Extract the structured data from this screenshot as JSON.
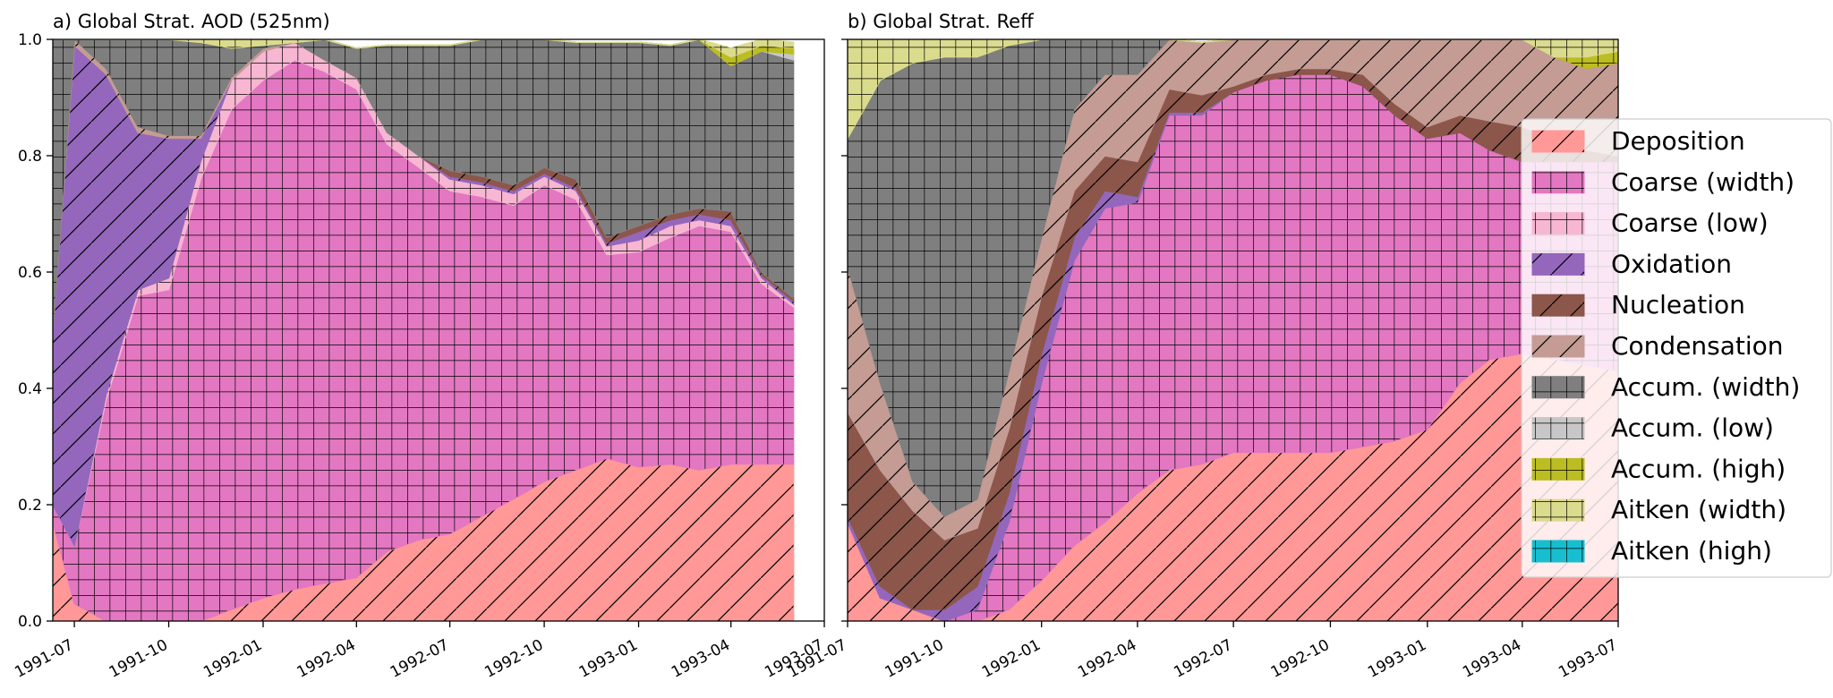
{
  "chart_data": [
    {
      "type": "area",
      "subtype": "stacked-fraction",
      "title": "a) Global Strat. AOD (525nm)",
      "x": [
        "1991-06",
        "1991-07",
        "1991-08",
        "1991-09",
        "1991-10",
        "1991-11",
        "1991-12",
        "1992-01",
        "1992-02",
        "1992-03",
        "1992-04",
        "1992-05",
        "1992-06",
        "1992-07",
        "1992-08",
        "1992-09",
        "1992-10",
        "1992-11",
        "1992-12",
        "1993-01",
        "1993-02",
        "1993-03",
        "1993-04",
        "1993-05",
        "1993-06"
      ],
      "xlim": [
        "1991-06-10",
        "1993-07-01"
      ],
      "ylim": [
        0,
        1
      ],
      "yticks": [
        "0.0",
        "0.2",
        "0.4",
        "0.6",
        "0.8",
        "1.0"
      ],
      "xticks": [
        "1991-07",
        "1991-10",
        "1992-01",
        "1992-04",
        "1992-07",
        "1992-10",
        "1993-01",
        "1993-04",
        "1993-07"
      ],
      "series": [
        {
          "name": "Deposition",
          "values": [
            0.23,
            0.03,
            0,
            0,
            0,
            0,
            0.02,
            0.04,
            0.055,
            0.065,
            0.075,
            0.12,
            0.14,
            0.15,
            0.18,
            0.21,
            0.24,
            0.26,
            0.28,
            0.265,
            0.27,
            0.26,
            0.27,
            0.27,
            0.27
          ]
        },
        {
          "name": "Coarse (width)",
          "values": [
            0,
            0.1,
            0.38,
            0.56,
            0.57,
            0.76,
            0.86,
            0.89,
            0.91,
            0.88,
            0.84,
            0.7,
            0.64,
            0.59,
            0.55,
            0.505,
            0.51,
            0.465,
            0.35,
            0.37,
            0.39,
            0.42,
            0.4,
            0.31,
            0.27
          ]
        },
        {
          "name": "Coarse (low)",
          "values": [
            0,
            0,
            0.01,
            0.01,
            0.02,
            0.03,
            0.05,
            0.05,
            0.03,
            0.02,
            0.02,
            0.02,
            0.02,
            0.02,
            0.02,
            0.02,
            0.015,
            0.015,
            0.015,
            0.02,
            0.02,
            0.01,
            0.01,
            0.01,
            0.005
          ]
        },
        {
          "name": "Oxidation",
          "values": [
            0.06,
            0.86,
            0.55,
            0.27,
            0.24,
            0.04,
            0,
            0,
            0,
            0,
            0,
            0,
            0,
            0.005,
            0.005,
            0.005,
            0.005,
            0.005,
            0.005,
            0.015,
            0.01,
            0.01,
            0.01,
            0.005,
            0.005
          ]
        },
        {
          "name": "Nucleation",
          "values": [
            0,
            0,
            0,
            0,
            0,
            0,
            0,
            0,
            0,
            0,
            0,
            0,
            0,
            0.01,
            0.01,
            0.01,
            0.01,
            0.015,
            0.01,
            0.01,
            0.01,
            0.01,
            0.015,
            0.005,
            0.005
          ]
        },
        {
          "name": "Condensation",
          "values": [
            0,
            0.01,
            0.01,
            0.01,
            0.005,
            0.005,
            0.005,
            0.005,
            0,
            0,
            0,
            0,
            0,
            0,
            0,
            0,
            0,
            0,
            0,
            0,
            0,
            0,
            0,
            0,
            0
          ]
        },
        {
          "name": "Accum. (width)",
          "values": [
            0.71,
            0,
            0.05,
            0.15,
            0.165,
            0.16,
            0.05,
            0.005,
            0,
            0.085,
            0.05,
            0.15,
            0.19,
            0.215,
            0.235,
            0.25,
            0.225,
            0.235,
            0.335,
            0.315,
            0.29,
            0.29,
            0.25,
            0.38,
            0.41
          ]
        },
        {
          "name": "Accum. (low)",
          "values": [
            0,
            0,
            0,
            0,
            0,
            0,
            0,
            0,
            0,
            0,
            0,
            0,
            0,
            0,
            0,
            0,
            0,
            0,
            0,
            0,
            0,
            0,
            0,
            0,
            0.01
          ]
        },
        {
          "name": "Accum. (high)",
          "values": [
            0,
            0,
            0,
            0,
            0,
            0,
            0,
            0,
            0,
            0,
            0,
            0,
            0,
            0,
            0,
            0,
            0,
            0,
            0,
            0,
            0,
            0.01,
            0.015,
            0.01,
            0.01
          ]
        },
        {
          "name": "Aitken (width)",
          "values": [
            0,
            0,
            0,
            0,
            0,
            0.005,
            0.035,
            0.02,
            0.005,
            0.005,
            0,
            0,
            0,
            0,
            0,
            0,
            0,
            0,
            0,
            0,
            0,
            0,
            0.015,
            0.01,
            0.01
          ]
        },
        {
          "name": "Aitken (high)",
          "values": [
            0,
            0,
            0,
            0,
            0,
            0,
            0,
            0,
            0,
            0,
            0,
            0,
            0,
            0,
            0,
            0,
            0,
            0,
            0,
            0,
            0,
            0,
            0,
            0,
            0
          ]
        }
      ]
    },
    {
      "type": "area",
      "subtype": "stacked-fraction",
      "title": "b) Global Strat. Reff",
      "x": [
        "1991-07",
        "1991-08",
        "1991-09",
        "1991-10",
        "1991-11",
        "1991-12",
        "1992-01",
        "1992-02",
        "1992-03",
        "1992-04",
        "1992-05",
        "1992-06",
        "1992-07",
        "1992-08",
        "1992-09",
        "1992-10",
        "1992-11",
        "1992-12",
        "1993-01",
        "1993-02",
        "1993-03",
        "1993-04",
        "1993-05",
        "1993-06",
        "1993-07"
      ],
      "xlim": [
        "1991-07-01",
        "1993-07-01"
      ],
      "ylim": [
        0,
        1
      ],
      "yticks": [
        "0.0",
        "0.2",
        "0.4",
        "0.6",
        "0.8",
        "1.0"
      ],
      "xticks": [
        "1991-07",
        "1991-10",
        "1992-01",
        "1992-04",
        "1992-07",
        "1992-10",
        "1993-01",
        "1993-04",
        "1993-07"
      ],
      "series": [
        {
          "name": "Deposition",
          "values": [
            0.17,
            0.04,
            0.02,
            0,
            0,
            0.02,
            0.07,
            0.13,
            0.17,
            0.22,
            0.26,
            0.27,
            0.29,
            0.29,
            0.29,
            0.29,
            0.3,
            0.31,
            0.33,
            0.41,
            0.45,
            0.46,
            0.45,
            0.44,
            0.43
          ]
        },
        {
          "name": "Coarse (width)",
          "values": [
            0,
            0,
            0,
            0,
            0.02,
            0.15,
            0.34,
            0.49,
            0.54,
            0.5,
            0.61,
            0.6,
            0.62,
            0.64,
            0.65,
            0.65,
            0.62,
            0.56,
            0.5,
            0.43,
            0.36,
            0.33,
            0.34,
            0.35,
            0.36
          ]
        },
        {
          "name": "Coarse (low)",
          "values": [
            0,
            0,
            0,
            0,
            0,
            0,
            0,
            0,
            0,
            0,
            0,
            0,
            0,
            0,
            0,
            0,
            0,
            0,
            0,
            0,
            0,
            0,
            0,
            0,
            0
          ]
        },
        {
          "name": "Oxidation",
          "values": [
            0.01,
            0.02,
            0,
            0.02,
            0.04,
            0.05,
            0.05,
            0.04,
            0.03,
            0.01,
            0.005,
            0.005,
            0,
            0,
            0,
            0,
            0,
            0,
            0,
            0,
            0,
            0,
            0,
            0,
            0
          ]
        },
        {
          "name": "Nucleation",
          "values": [
            0.18,
            0.2,
            0.17,
            0.12,
            0.1,
            0.11,
            0.1,
            0.08,
            0.06,
            0.06,
            0.04,
            0.03,
            0.01,
            0.01,
            0.01,
            0.01,
            0.02,
            0.02,
            0.02,
            0.03,
            0.05,
            0.06,
            0.04,
            0.02,
            0.01
          ]
        },
        {
          "name": "Condensation",
          "values": [
            0.25,
            0.15,
            0.05,
            0.04,
            0.05,
            0.1,
            0.1,
            0.14,
            0.14,
            0.15,
            0.09,
            0.09,
            0.08,
            0.06,
            0.05,
            0.05,
            0.06,
            0.11,
            0.15,
            0.13,
            0.14,
            0.15,
            0.14,
            0.14,
            0.16
          ]
        },
        {
          "name": "Accum. (width)",
          "values": [
            0.22,
            0.52,
            0.72,
            0.79,
            0.76,
            0.56,
            0.36,
            0.12,
            0.06,
            0.06,
            0,
            0,
            0,
            0,
            0,
            0,
            0,
            0,
            0,
            0,
            0,
            0,
            0,
            0,
            0
          ]
        },
        {
          "name": "Accum. (low)",
          "values": [
            0,
            0,
            0,
            0,
            0,
            0,
            0,
            0,
            0,
            0,
            0,
            0,
            0,
            0,
            0,
            0,
            0,
            0,
            0,
            0,
            0,
            0,
            0,
            0,
            0
          ]
        },
        {
          "name": "Accum. (high)",
          "values": [
            0,
            0,
            0,
            0,
            0,
            0,
            0,
            0,
            0,
            0,
            0,
            0,
            0,
            0,
            0,
            0,
            0,
            0,
            0,
            0,
            0,
            0,
            0,
            0.02,
            0.02
          ]
        },
        {
          "name": "Aitken (width)",
          "values": [
            0.17,
            0.07,
            0.04,
            0.03,
            0.03,
            0.01,
            0,
            0,
            0,
            0,
            0,
            0,
            0,
            0,
            0,
            0,
            0,
            0,
            0,
            0,
            0,
            0,
            0.03,
            0.03,
            0.02
          ]
        },
        {
          "name": "Aitken (high)",
          "values": [
            0,
            0,
            0,
            0,
            0,
            0,
            0,
            0,
            0,
            0,
            0,
            0,
            0,
            0,
            0,
            0,
            0,
            0,
            0,
            0,
            0,
            0,
            0,
            0,
            0
          ]
        }
      ]
    }
  ],
  "legend": {
    "placement": "right",
    "items": [
      {
        "label": "Deposition",
        "color": "#ff9896",
        "hatch": "diagonal"
      },
      {
        "label": "Coarse (width)",
        "color": "#e377c2",
        "hatch": "grid"
      },
      {
        "label": "Coarse (low)",
        "color": "#f7b6d2",
        "hatch": "grid"
      },
      {
        "label": "Oxidation",
        "color": "#9467bd",
        "hatch": "diagonal"
      },
      {
        "label": "Nucleation",
        "color": "#8c564b",
        "hatch": "diagonal"
      },
      {
        "label": "Condensation",
        "color": "#c49c94",
        "hatch": "diagonal"
      },
      {
        "label": "Accum. (width)",
        "color": "#7f7f7f",
        "hatch": "grid"
      },
      {
        "label": "Accum. (low)",
        "color": "#c7c7c7",
        "hatch": "grid"
      },
      {
        "label": "Accum. (high)",
        "color": "#bcbd22",
        "hatch": "grid"
      },
      {
        "label": "Aitken (width)",
        "color": "#dbdb8d",
        "hatch": "grid"
      },
      {
        "label": "Aitken (high)",
        "color": "#17becf",
        "hatch": "grid"
      }
    ]
  }
}
